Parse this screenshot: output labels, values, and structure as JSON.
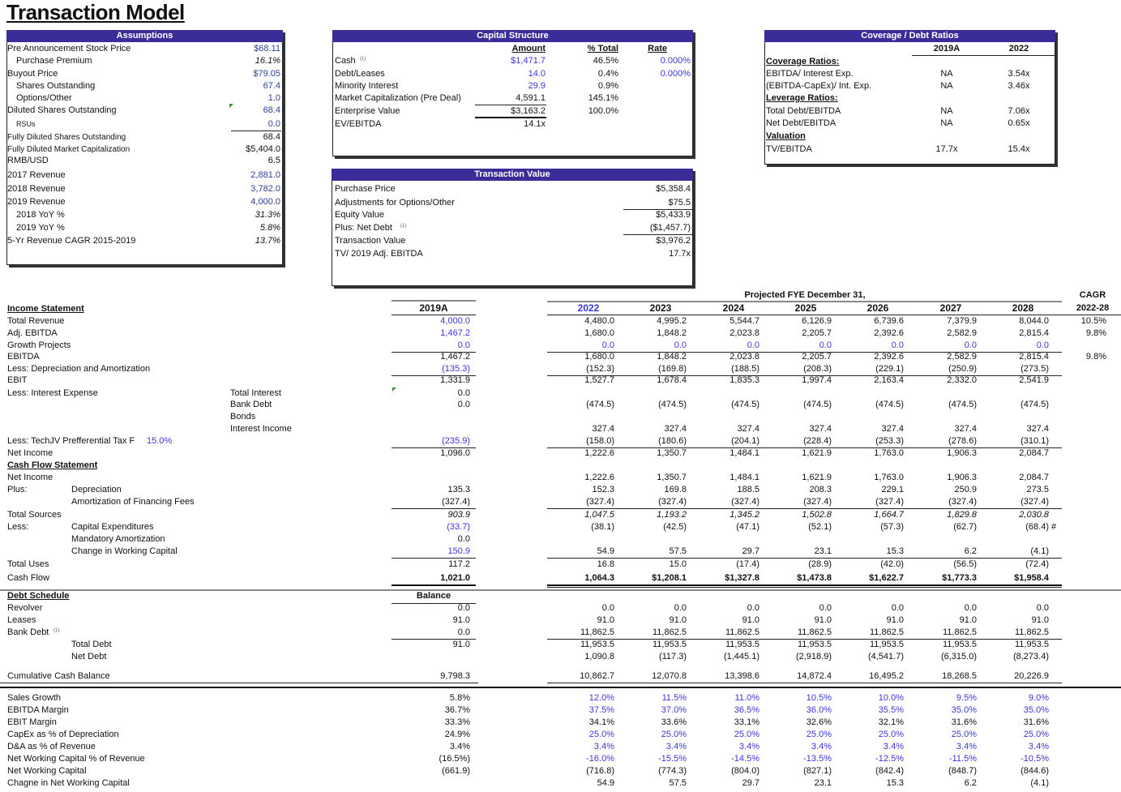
{
  "title": "Transaction Model",
  "assumptions": {
    "title": "Assumptions",
    "rows": [
      {
        "label": "Pre Announcement Stock Price",
        "value": "$68.11"
      },
      {
        "label": "Purchase Premium",
        "value": "16.1%"
      },
      {
        "label": "Buyout Price",
        "value": "$79.05"
      },
      {
        "label": "Shares Outstanding",
        "value": "67.4"
      },
      {
        "label": "Options/Other",
        "value": "1.0"
      },
      {
        "label": "Diluted Shares Outstanding",
        "value": "68.4"
      },
      {
        "label": "RSUs",
        "value": "0.0"
      },
      {
        "label": "Fully Diluted Shares Outstanding",
        "value": "68.4"
      },
      {
        "label": "Fully Diluted Market Capitalization",
        "value": "$5,404.0"
      },
      {
        "label": "RMB/USD",
        "value": "6.5"
      },
      {
        "label": "2017 Revenue",
        "value": "2,881.0"
      },
      {
        "label": "2018 Revenue",
        "value": "3,782.0"
      },
      {
        "label": "2019 Revenue",
        "value": "4,000.0"
      },
      {
        "label": "2018 YoY %",
        "value": "31.3%"
      },
      {
        "label": "2019 YoY %",
        "value": "5.8%"
      },
      {
        "label": "5-Yr Revenue CAGR 2015-2019",
        "value": "13.7%"
      }
    ]
  },
  "capital": {
    "title": "Capital Structure",
    "headers": [
      "Amount",
      "% Total",
      "Rate"
    ],
    "rows": [
      {
        "label": "Cash",
        "note": "(1)",
        "amount": "$1,471.7",
        "pct": "46.5%",
        "rate": "0.000%"
      },
      {
        "label": "Debt/Leases",
        "amount": "14.0",
        "pct": "0.4%",
        "rate": "0.000%"
      },
      {
        "label": "Minority Interest",
        "amount": "29.9",
        "pct": "0.9%"
      },
      {
        "label": "Market Capitalization (Pre Deal)",
        "amount": "4,591.1",
        "pct": "145.1%"
      },
      {
        "label": "Enterprise Value",
        "amount": "$3,163.2",
        "pct": "100.0%"
      },
      {
        "label": "EV/EBITDA",
        "amount": "14.1x"
      }
    ]
  },
  "transaction": {
    "title": "Transaction Value",
    "rows": [
      {
        "label": "Purchase Price",
        "value": "$5,358.4"
      },
      {
        "label": "Adjustments for Options/Other",
        "value": "$75.5"
      },
      {
        "label": "Equity Value",
        "value": "$5,433.9"
      },
      {
        "label": "Plus:  Net Debt",
        "note": "(1)",
        "value": "($1,457.7)"
      },
      {
        "label": "Transaction Value",
        "value": "$3,976.2"
      },
      {
        "label": "TV/ 2019 Adj. EBITDA",
        "value": "17.7x"
      }
    ]
  },
  "coverage": {
    "title": "Coverage / Debt Ratios",
    "headers": [
      "2019A",
      "2022"
    ],
    "rows": [
      {
        "label": "Coverage Ratios:",
        "section": true
      },
      {
        "label": "EBITDA/ Interest Exp.",
        "a": "NA",
        "b": "3.54x"
      },
      {
        "label": "(EBITDA-CapEx)/ Int. Exp.",
        "a": "NA",
        "b": "3.46x"
      },
      {
        "label": "Leverage Ratios:",
        "section": true
      },
      {
        "label": "Total Debt/EBITDA",
        "a": "NA",
        "b": "7.06x"
      },
      {
        "label": "Net Debt/EBITDA",
        "a": "NA",
        "b": "0.65x"
      },
      {
        "label": "Valuation",
        "section": true
      },
      {
        "label": "TV/EBITDA",
        "a": "17.7x",
        "b": "15.4x"
      }
    ]
  },
  "model": {
    "projected_title": "Projected FYE December 31,",
    "cagr_title": "CAGR",
    "cagr_range": "2022-28",
    "actual_header": "2019A",
    "years": [
      "2022",
      "2023",
      "2024",
      "2025",
      "2026",
      "2027",
      "2028"
    ],
    "rows": [
      {
        "label": "Income Statement",
        "section": true
      },
      {
        "label": "Total Revenue",
        "a": "4,000.0",
        "p": [
          "4,480.0",
          "4,995.2",
          "5,544.7",
          "6,126.9",
          "6,739.6",
          "7,379.9",
          "8,044.0"
        ],
        "cagr": "10.5%"
      },
      {
        "label": "Adj. EBITDA",
        "a": "1,467.2",
        "p": [
          "1,680.0",
          "1,848.2",
          "2,023.8",
          "2,205.7",
          "2,392.6",
          "2,582.9",
          "2,815.4"
        ],
        "cagr": "9.8%"
      },
      {
        "label": "Growth Projects",
        "a": "0.0",
        "p": [
          "0.0",
          "0.0",
          "0.0",
          "0.0",
          "0.0",
          "0.0",
          "0.0"
        ]
      },
      {
        "label": "EBITDA",
        "a": "1,467.2",
        "p": [
          "1,680.0",
          "1,848.2",
          "2,023.8",
          "2,205.7",
          "2,392.6",
          "2,582.9",
          "2,815.4"
        ],
        "cagr": "9.8%"
      },
      {
        "label": "Less:  Depreciation and Amortization",
        "a": "(135.3)",
        "p": [
          "(152.3)",
          "(169.8)",
          "(188.5)",
          "(208.3)",
          "(229.1)",
          "(250.9)",
          "(273.5)"
        ]
      },
      {
        "label": "EBIT",
        "a": "1,331.9",
        "p": [
          "1,527.7",
          "1,678.4",
          "1,835.3",
          "1,997.4",
          "2,163.4",
          "2,332.0",
          "2,541.9"
        ]
      },
      {
        "label": "Less:  Interest Expense",
        "mid": "Total Interest",
        "a": "0.0"
      },
      {
        "mid": "Bank Debt",
        "a": "0.0",
        "p": [
          "(474.5)",
          "(474.5)",
          "(474.5)",
          "(474.5)",
          "(474.5)",
          "(474.5)",
          "(474.5)"
        ]
      },
      {
        "mid": "Bonds"
      },
      {
        "mid": "Interest Income",
        "p": [
          "327.4",
          "327.4",
          "327.4",
          "327.4",
          "327.4",
          "327.4",
          "327.4"
        ]
      },
      {
        "label": "Less: TechJV Prefferential Tax F",
        "rate": "15.0%",
        "a": "(235.9)",
        "p": [
          "(158.0)",
          "(180.6)",
          "(204.1)",
          "(228.4)",
          "(253.3)",
          "(278.6)",
          "(310.1)"
        ]
      },
      {
        "label": "Net Income",
        "a": "1,096.0",
        "p": [
          "1,222.6",
          "1,350.7",
          "1,484.1",
          "1,621.9",
          "1,763.0",
          "1,906.3",
          "2,084.7"
        ]
      },
      {
        "label": "Cash Flow Statement",
        "section": true
      },
      {
        "label": "Net Income",
        "p": [
          "1,222.6",
          "1,350.7",
          "1,484.1",
          "1,621.9",
          "1,763.0",
          "1,906.3",
          "2,084.7"
        ]
      },
      {
        "label": "Plus:",
        "sub": "Depreciation",
        "a": "135.3",
        "p": [
          "152.3",
          "169.8",
          "188.5",
          "208.3",
          "229.1",
          "250.9",
          "273.5"
        ]
      },
      {
        "sub": "Amortization of Financing Fees",
        "a": "(327.4)",
        "p": [
          "(327.4)",
          "(327.4)",
          "(327.4)",
          "(327.4)",
          "(327.4)",
          "(327.4)",
          "(327.4)"
        ]
      },
      {
        "label": "Total Sources",
        "a": "903.9",
        "p": [
          "1,047.5",
          "1,193.2",
          "1,345.2",
          "1,502.8",
          "1,664.7",
          "1,829.8",
          "2,030.8"
        ]
      },
      {
        "label": "Less:",
        "sub": "Capital Expenditures",
        "a": "(33.7)",
        "p": [
          "(38.1)",
          "(42.5)",
          "(47.1)",
          "(52.1)",
          "(57.3)",
          "(62.7)",
          "(68.4)"
        ],
        "cagr": "#"
      },
      {
        "sub": "Mandatory Amortization",
        "a": "0.0"
      },
      {
        "sub": "Change in Working Capital",
        "a": "150.9",
        "p": [
          "54.9",
          "57.5",
          "29.7",
          "23.1",
          "15.3",
          "6.2",
          "(4.1)"
        ]
      },
      {
        "label": "Total Uses",
        "a": "117.2",
        "p": [
          "16.8",
          "15.0",
          "(17.4)",
          "(28.9)",
          "(42.0)",
          "(56.5)",
          "(72.4)"
        ]
      },
      {
        "label": "Cash Flow",
        "a": "1,021.0",
        "p": [
          "1,064.3",
          "$1,208.1",
          "$1,327.8",
          "$1,473.8",
          "$1,622.7",
          "$1,773.3",
          "$1,958.4"
        ]
      },
      {
        "label": "Debt Schedule",
        "section": true,
        "a": "Balance"
      },
      {
        "label": "Revolver",
        "a": "0.0",
        "p": [
          "0.0",
          "0.0",
          "0.0",
          "0.0",
          "0.0",
          "0.0",
          "0.0"
        ]
      },
      {
        "label": "Leases",
        "a": "91.0",
        "p": [
          "91.0",
          "91.0",
          "91.0",
          "91.0",
          "91.0",
          "91.0",
          "91.0"
        ]
      },
      {
        "label": "Bank Debt",
        "note": "(1)",
        "a": "0.0",
        "p": [
          "11,862.5",
          "11,862.5",
          "11,862.5",
          "11,862.5",
          "11,862.5",
          "11,862.5",
          "11,862.5"
        ]
      },
      {
        "sub": "Total Debt",
        "a": "91.0",
        "p": [
          "11,953.5",
          "11,953.5",
          "11,953.5",
          "11,953.5",
          "11,953.5",
          "11,953.5",
          "11,953.5"
        ]
      },
      {
        "sub": "Net Debt",
        "p": [
          "1,090.8",
          "(117.3)",
          "(1,445.1)",
          "(2,918.9)",
          "(4,541.7)",
          "(6,315.0)",
          "(8,273.4)"
        ]
      },
      {
        "label": "Cumulative Cash Balance",
        "a": "9,798.3",
        "p": [
          "10,862.7",
          "12,070.8",
          "13,398.6",
          "14,872.4",
          "16,495.2",
          "18,268.5",
          "20,226.9"
        ]
      },
      {
        "label": "Sales Growth",
        "a": "5.8%",
        "p": [
          "12.0%",
          "11.5%",
          "11.0%",
          "10.5%",
          "10.0%",
          "9.5%",
          "9.0%"
        ]
      },
      {
        "label": "EBITDA Margin",
        "a": "36.7%",
        "p": [
          "37.5%",
          "37.0%",
          "36.5%",
          "36.0%",
          "35.5%",
          "35.0%",
          "35.0%"
        ]
      },
      {
        "label": "EBIT Margin",
        "a": "33.3%",
        "p": [
          "34.1%",
          "33.6%",
          "33.1%",
          "32.6%",
          "32.1%",
          "31.6%",
          "31.6%"
        ]
      },
      {
        "label": "CapEx as % of Depreciation",
        "a": "24.9%",
        "p": [
          "25.0%",
          "25.0%",
          "25.0%",
          "25.0%",
          "25.0%",
          "25.0%",
          "25.0%"
        ]
      },
      {
        "label": "D&A as % of Revenue",
        "a": "3.4%",
        "p": [
          "3.4%",
          "3.4%",
          "3.4%",
          "3.4%",
          "3.4%",
          "3.4%",
          "3.4%"
        ]
      },
      {
        "label": "Net Working Capital % of Revenue",
        "a": "(16.5%)",
        "p": [
          "-16.0%",
          "-15.5%",
          "-14.5%",
          "-13.5%",
          "-12.5%",
          "-11.5%",
          "-10.5%"
        ]
      },
      {
        "label": "Net Working Capital",
        "a": "(661.9)",
        "p": [
          "(716.8)",
          "(774.3)",
          "(804.0)",
          "(827.1)",
          "(842.4)",
          "(848.7)",
          "(844.6)"
        ]
      },
      {
        "label": "Chagne in Net Working Capital",
        "p": [
          "54.9",
          "57.5",
          "29.7",
          "23.1",
          "15.3",
          "6.2",
          "(4.1)"
        ]
      }
    ]
  },
  "colors": {
    "header": "#3a2d98",
    "input_blue": "#3c37d6"
  }
}
